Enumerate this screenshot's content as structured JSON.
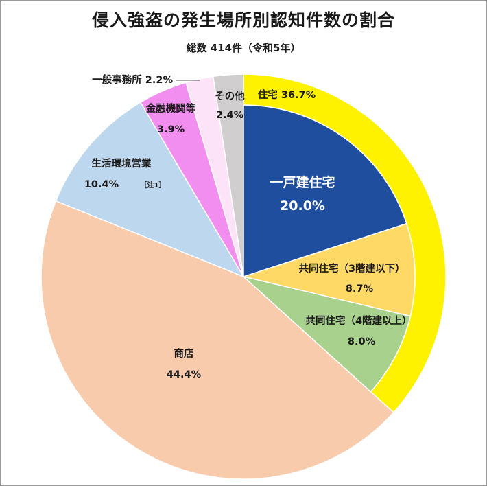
{
  "chart_data": {
    "type": "pie",
    "title": "侵入強盗の発生場所別認知件数の割合",
    "subtitle": "総数 414件（令和5年）",
    "inner": [
      {
        "label": "一戸建住宅",
        "value": 20.0,
        "value_label": "20.0%",
        "color": "#1f4e9e"
      },
      {
        "label": "共同住宅（3階建以下）",
        "value": 8.7,
        "value_label": "8.7%",
        "color": "#ffd966"
      },
      {
        "label": "共同住宅（4階建以上）",
        "value": 8.0,
        "value_label": "8.0%",
        "color": "#a9d18e"
      },
      {
        "label": "商店",
        "value": 44.4,
        "value_label": "44.4%",
        "color": "#f8cbad"
      },
      {
        "label": "生活環境営業",
        "value": 10.4,
        "value_label": "10.4%",
        "note": "［注1］",
        "color": "#bdd7ee"
      },
      {
        "label": "金融機関等",
        "value": 3.9,
        "value_label": "3.9%",
        "color": "#f28ef0"
      },
      {
        "label": "一般事務所",
        "value": 2.2,
        "value_label": "2.2%",
        "color": "#fde3f7"
      },
      {
        "label": "その他",
        "value": 2.4,
        "value_label": "2.4%",
        "color": "#d0cece"
      }
    ],
    "outer_ring": {
      "label": "住宅",
      "value": 36.7,
      "value_label": "36.7%",
      "color": "#fff200"
    }
  }
}
